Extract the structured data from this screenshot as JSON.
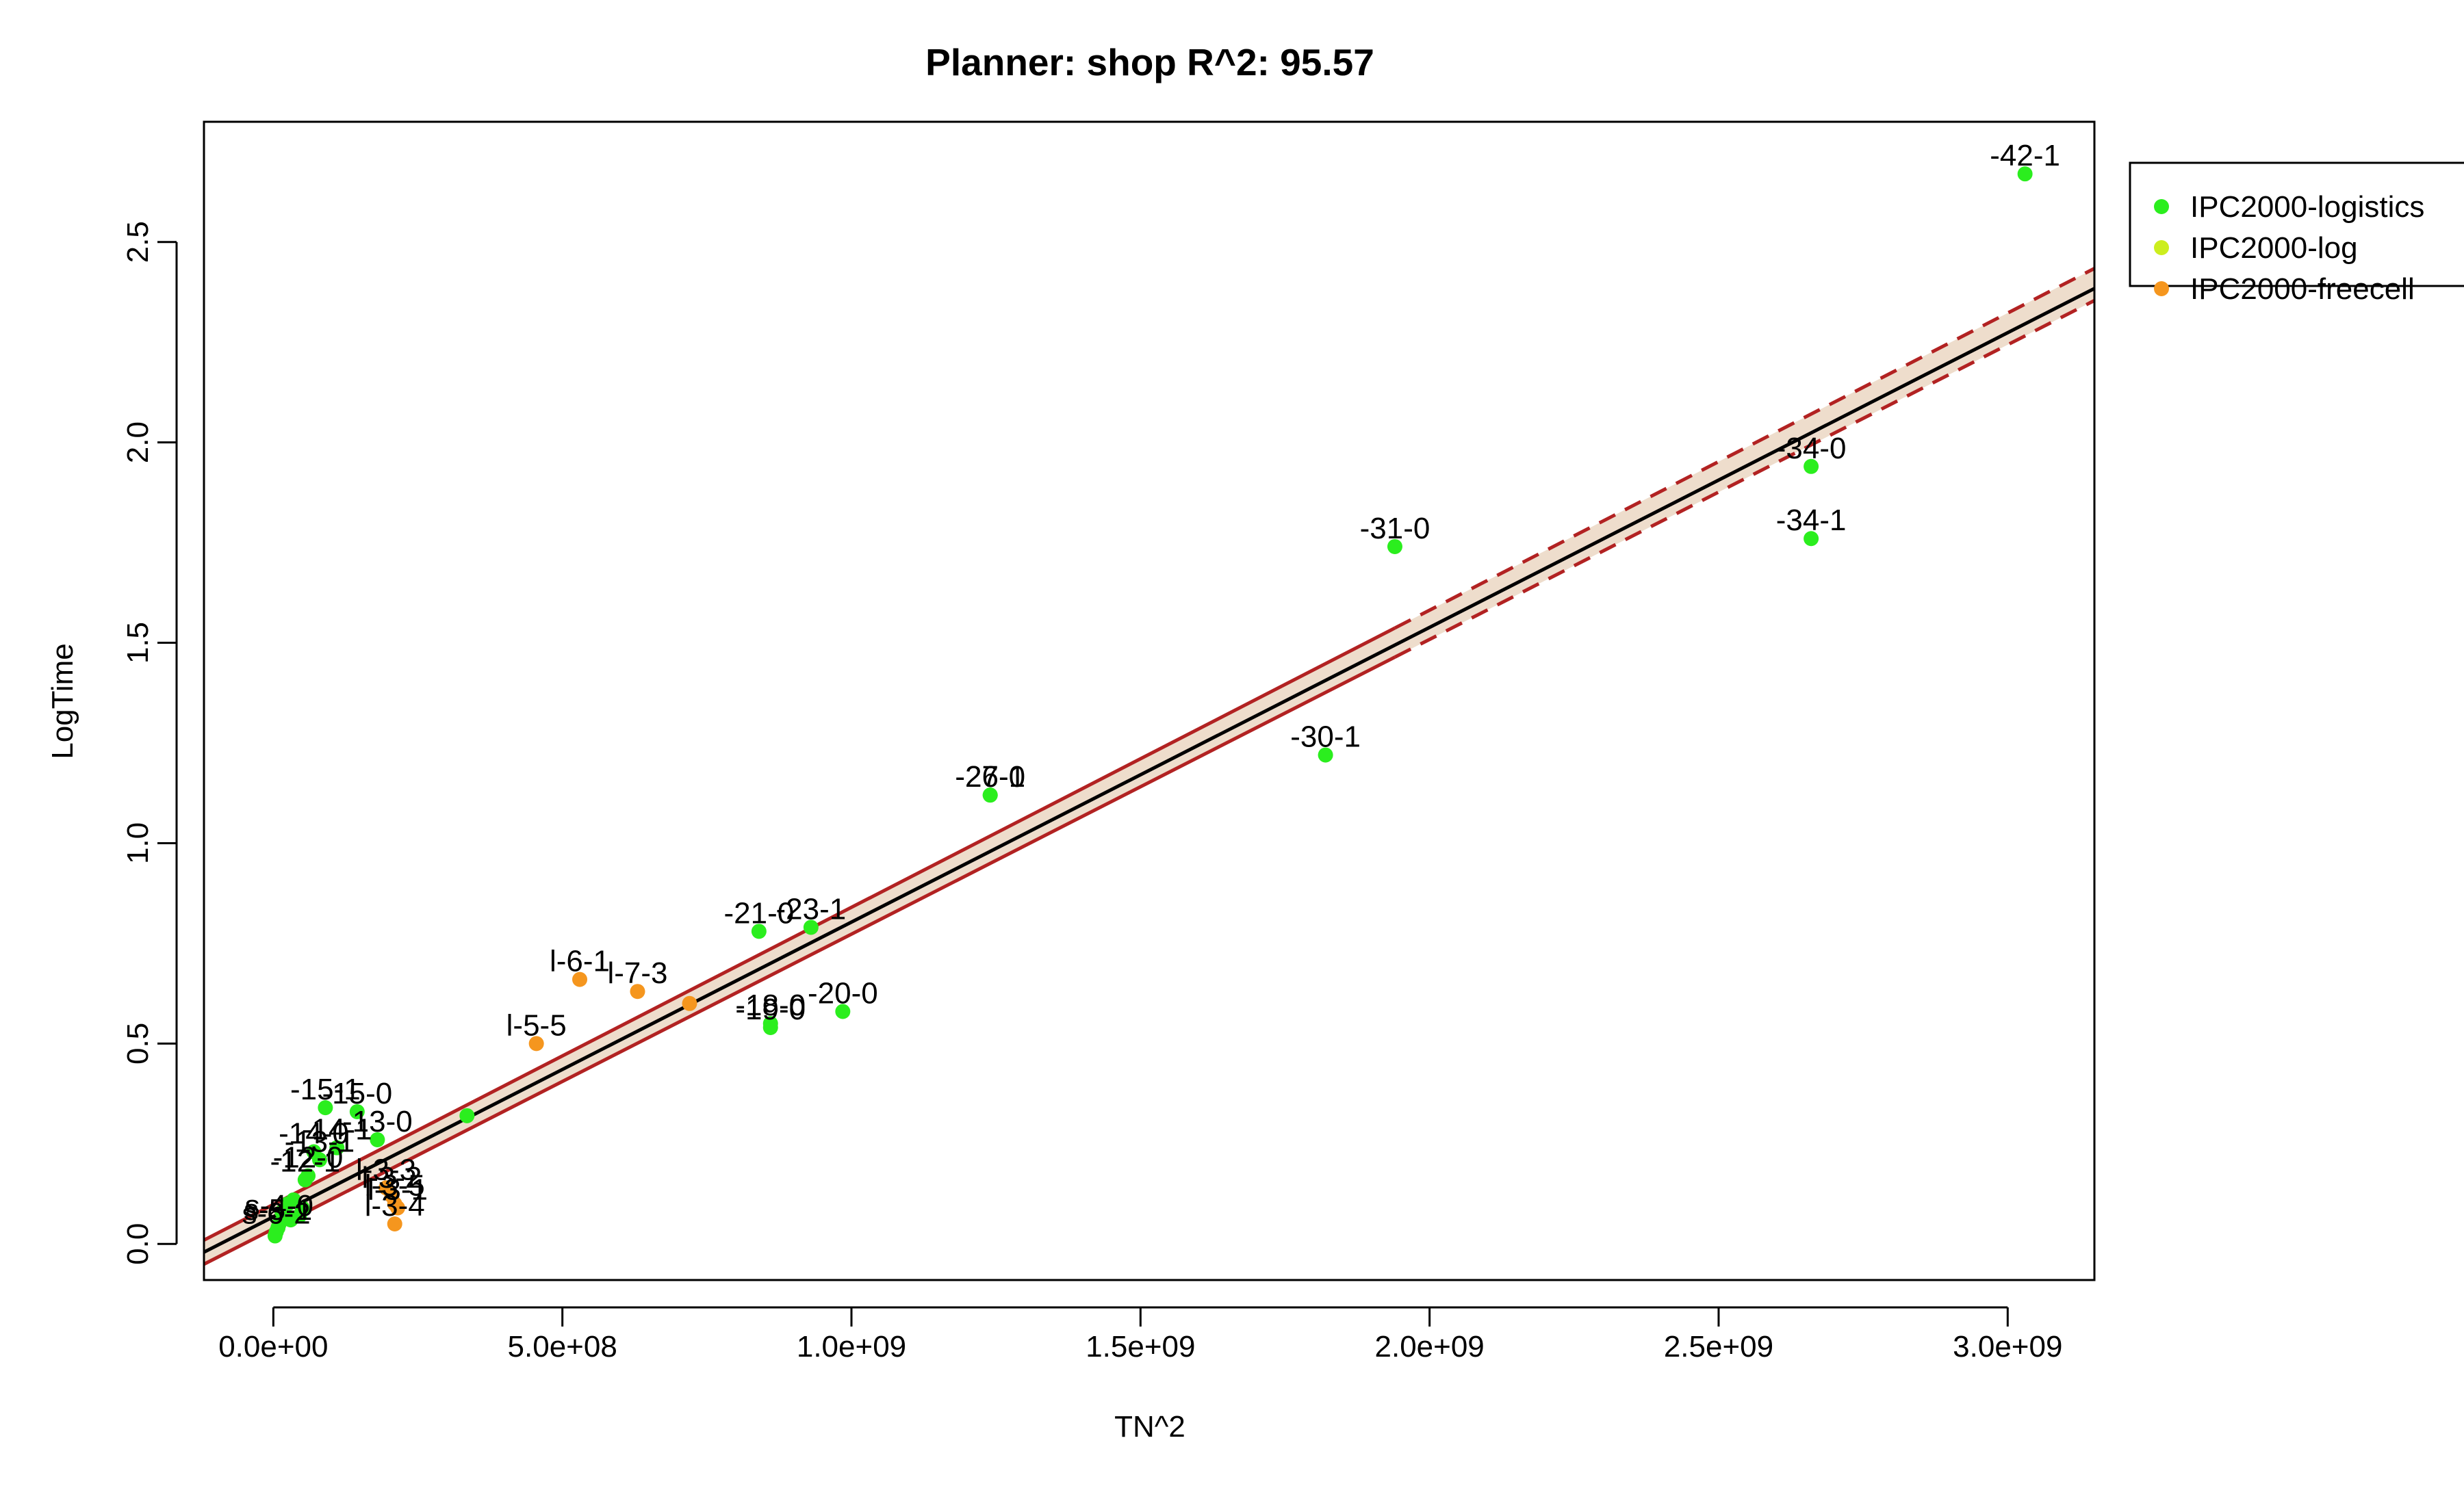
{
  "chart_data": {
    "type": "scatter",
    "title": "Planner: shop R^2: 95.57",
    "xlabel": "TN^2",
    "ylabel": "LogTime",
    "xlim": [
      -120000000,
      3150000000
    ],
    "ylim": [
      -0.09,
      2.8
    ],
    "x_ticks": [
      0,
      500000000,
      1000000000,
      1500000000,
      2000000000,
      2500000000,
      3000000000
    ],
    "x_tick_labels": [
      "0.0e+00",
      "5.0e+08",
      "1.0e+09",
      "1.5e+09",
      "2.0e+09",
      "2.5e+09",
      "3.0e+09"
    ],
    "y_ticks": [
      0.0,
      0.5,
      1.0,
      1.5,
      2.0,
      2.5
    ],
    "y_tick_labels": [
      "0.0",
      "0.5",
      "1.0",
      "1.5",
      "2.0",
      "2.5"
    ],
    "grid": false,
    "legend_position": "outside-top-right",
    "series": [
      {
        "name": "IPC2000-logistics",
        "color": "#2BEE1E"
      },
      {
        "name": "IPC2000-log",
        "color": "#CCEE1E"
      },
      {
        "name": "IPC2000-freecell",
        "color": "#F5961E"
      }
    ],
    "fit_line": {
      "color": "#000000",
      "x": [
        -120000000,
        3150000000
      ],
      "y": [
        -0.0205,
        2.384
      ]
    },
    "confidence_band": {
      "line_color": "#B22222",
      "fill_color": "#EEDDCC",
      "lower": {
        "x": [
          -120000000,
          3150000000
        ],
        "y": [
          -0.0505,
          2.354
        ]
      },
      "upper": {
        "x": [
          -120000000,
          3150000000
        ],
        "y": [
          0.0095,
          2.434
        ]
      }
    },
    "points": [
      {
        "x": 3030000000,
        "y": 2.67,
        "series": 0,
        "label": "-42-1"
      },
      {
        "x": 2660000000,
        "y": 1.94,
        "series": 0,
        "label": "-34-0"
      },
      {
        "x": 2660000000,
        "y": 1.76,
        "series": 0,
        "label": "-34-1"
      },
      {
        "x": 1940000000,
        "y": 1.74,
        "series": 0,
        "label": "-31-0"
      },
      {
        "x": 1820000000,
        "y": 1.22,
        "series": 0,
        "label": "-30-1"
      },
      {
        "x": 1240000000,
        "y": 1.12,
        "series": 0,
        "label": "-26-1"
      },
      {
        "x": 1240000000,
        "y": 1.12,
        "series": 0,
        "label": "-27-0"
      },
      {
        "x": 930000000,
        "y": 0.79,
        "series": 0,
        "label": "-23-1"
      },
      {
        "x": 840000000,
        "y": 0.78,
        "series": 0,
        "label": "-21-0"
      },
      {
        "x": 985000000,
        "y": 0.58,
        "series": 0,
        "label": "-20-0"
      },
      {
        "x": 860000000,
        "y": 0.54,
        "series": 0,
        "label": "-19-0"
      },
      {
        "x": 860000000,
        "y": 0.55,
        "series": 0,
        "label": "-18-0"
      },
      {
        "x": 335000000,
        "y": 0.32,
        "series": 0,
        "label": ""
      },
      {
        "x": 90000000,
        "y": 0.34,
        "series": 0,
        "label": "-15-1"
      },
      {
        "x": 145000000,
        "y": 0.33,
        "series": 0,
        "label": "-15-0"
      },
      {
        "x": 180000000,
        "y": 0.26,
        "series": 0,
        "label": "-13-0"
      },
      {
        "x": 110000000,
        "y": 0.24,
        "series": 0,
        "label": "-14-1"
      },
      {
        "x": 70000000,
        "y": 0.23,
        "series": 0,
        "label": "-14-0"
      },
      {
        "x": 80000000,
        "y": 0.21,
        "series": 0,
        "label": "-13-1"
      },
      {
        "x": 60000000,
        "y": 0.17,
        "series": 0,
        "label": "-12-0"
      },
      {
        "x": 55000000,
        "y": 0.16,
        "series": 0,
        "label": "-12-1"
      },
      {
        "x": 35000000,
        "y": 0.11,
        "series": 0,
        "label": ""
      },
      {
        "x": 25000000,
        "y": 0.1,
        "series": 0,
        "label": ""
      },
      {
        "x": 50000000,
        "y": 0.09,
        "series": 0,
        "label": ""
      },
      {
        "x": 15000000,
        "y": 0.08,
        "series": 0,
        "label": ""
      },
      {
        "x": 45000000,
        "y": 0.07,
        "series": 0,
        "label": ""
      },
      {
        "x": 30000000,
        "y": 0.06,
        "series": 0,
        "label": ""
      },
      {
        "x": 10000000,
        "y": 0.05,
        "series": 0,
        "label": "s-4-0"
      },
      {
        "x": 8000000,
        "y": 0.04,
        "series": 0,
        "label": "s-5-1"
      },
      {
        "x": 5000000,
        "y": 0.03,
        "series": 0,
        "label": "s-6-2"
      },
      {
        "x": 3000000,
        "y": 0.02,
        "series": 0,
        "label": ""
      },
      {
        "x": 530000000,
        "y": 0.66,
        "series": 2,
        "label": "l-6-1"
      },
      {
        "x": 630000000,
        "y": 0.63,
        "series": 2,
        "label": "l-7-3"
      },
      {
        "x": 720000000,
        "y": 0.6,
        "series": 2,
        "label": ""
      },
      {
        "x": 455000000,
        "y": 0.5,
        "series": 2,
        "label": "l-5-5"
      },
      {
        "x": 195000000,
        "y": 0.14,
        "series": 2,
        "label": "l-3-3"
      },
      {
        "x": 205000000,
        "y": 0.12,
        "series": 2,
        "label": "l-3-2"
      },
      {
        "x": 210000000,
        "y": 0.1,
        "series": 2,
        "label": "l-3-5"
      },
      {
        "x": 215000000,
        "y": 0.09,
        "series": 2,
        "label": "l-3-1"
      },
      {
        "x": 210000000,
        "y": 0.05,
        "series": 2,
        "label": "l-3-4"
      }
    ]
  }
}
